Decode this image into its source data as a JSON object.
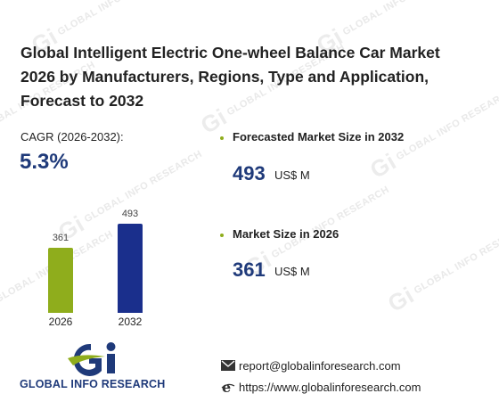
{
  "watermark": "GLOBAL INFO RESEARCH",
  "title": "Global Intelligent Electric One-wheel Balance Car Market 2026 by Manufacturers, Regions, Type and Application, Forecast to 2032",
  "cagr": {
    "label": "CAGR (2026-2032):",
    "value": "5.3%"
  },
  "chart_data": {
    "type": "bar",
    "categories": [
      "2026",
      "2032"
    ],
    "values": [
      361,
      493
    ],
    "value_labels": [
      "361",
      "493"
    ],
    "colors": [
      "#8fad1c",
      "#1a2f8c"
    ],
    "ylim": [
      0,
      550
    ]
  },
  "stats": [
    {
      "label": "Forecasted Market Size in 2032",
      "value": "493",
      "unit": "US$ M"
    },
    {
      "label": "Market Size in 2026",
      "value": "361",
      "unit": "US$ M"
    }
  ],
  "logo": {
    "text": "GLOBAL INFO RESEARCH",
    "mark_icon": "gi-logo-icon"
  },
  "contact": {
    "email": "report@globalinforesearch.com",
    "email_icon": "envelope-icon",
    "website": "https://www.globalinforesearch.com",
    "website_icon": "browser-icon"
  },
  "colors": {
    "accent_blue": "#1f3a7a",
    "accent_green": "#8fad1c"
  }
}
